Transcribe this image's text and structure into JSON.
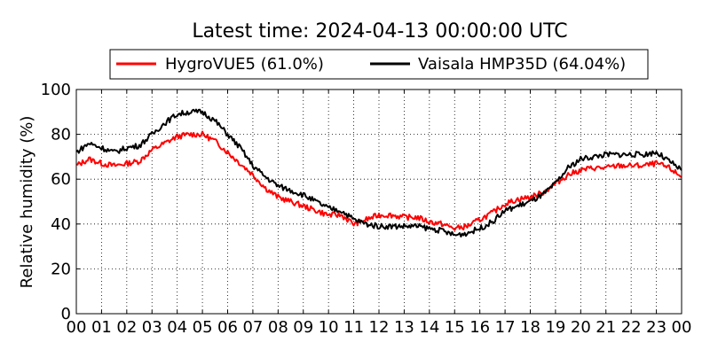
{
  "chart_data": {
    "type": "line",
    "title": "Latest time: 2024-04-13 00:00:00 UTC",
    "xlabel": "",
    "ylabel": "Relative humidity (%)",
    "xlim": [
      0,
      24
    ],
    "ylim": [
      0,
      100
    ],
    "grid": true,
    "legend_placement": "top-center",
    "xticks": [
      "00",
      "01",
      "02",
      "03",
      "04",
      "05",
      "06",
      "07",
      "08",
      "09",
      "10",
      "11",
      "12",
      "13",
      "14",
      "15",
      "16",
      "17",
      "18",
      "19",
      "20",
      "21",
      "22",
      "23",
      "00"
    ],
    "yticks": [
      0,
      20,
      40,
      60,
      80,
      100
    ],
    "x": [
      0,
      0.5,
      1,
      1.5,
      2,
      2.5,
      3,
      3.5,
      4,
      4.5,
      5,
      5.5,
      6,
      6.5,
      7,
      7.5,
      8,
      8.5,
      9,
      9.5,
      10,
      10.5,
      11,
      11.5,
      12,
      12.5,
      13,
      13.5,
      14,
      14.5,
      15,
      15.5,
      16,
      16.5,
      17,
      17.5,
      18,
      18.5,
      19,
      19.5,
      20,
      20.5,
      21,
      21.5,
      22,
      22.5,
      23,
      23.5,
      24
    ],
    "series": [
      {
        "name": "HygroVUE5 (61.0%)",
        "color": "#ff0000",
        "values": [
          66,
          69,
          67,
          66,
          67,
          68,
          73,
          76,
          79,
          80,
          80,
          77,
          72,
          67,
          62,
          56,
          52,
          50,
          48,
          46,
          44,
          44,
          40,
          42,
          44,
          44,
          43,
          43,
          41,
          40,
          38,
          39,
          42,
          45,
          49,
          51,
          52,
          54,
          58,
          62,
          64,
          65,
          65,
          66,
          66,
          66,
          67,
          65,
          61
        ]
      },
      {
        "name": "Vaisala HMP35D (64.04%)",
        "color": "#000000",
        "values": [
          72,
          76,
          74,
          72,
          74,
          75,
          80,
          85,
          89,
          90,
          90,
          86,
          80,
          74,
          66,
          61,
          57,
          55,
          53,
          50,
          47,
          46,
          42,
          40,
          39,
          39,
          39,
          39,
          38,
          37,
          35,
          36,
          38,
          41,
          46,
          48,
          50,
          53,
          58,
          65,
          69,
          70,
          71,
          71,
          71,
          71,
          72,
          68,
          64
        ]
      }
    ]
  }
}
